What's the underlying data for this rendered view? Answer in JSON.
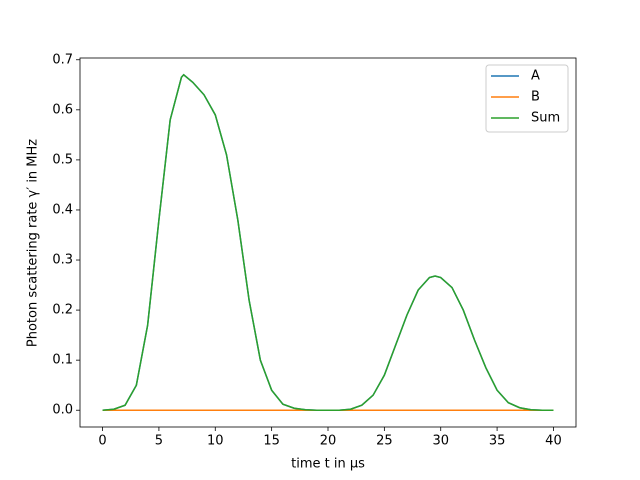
{
  "chart_data": {
    "type": "line",
    "xlabel": "time t in μs",
    "ylabel": "Photon scattering rate γ′ in MHz",
    "x": [
      0,
      1,
      2,
      3,
      4,
      5,
      6,
      7,
      7.2,
      8,
      9,
      10,
      11,
      12,
      13,
      14,
      15,
      16,
      17,
      18,
      19,
      20,
      21,
      22,
      23,
      24,
      25,
      26,
      27,
      28,
      29,
      29.5,
      30,
      31,
      32,
      33,
      34,
      35,
      36,
      37,
      38,
      39,
      40
    ],
    "series": [
      {
        "name": "A",
        "color": "#1f77b4",
        "values": [
          0,
          0.002,
          0.01,
          0.05,
          0.17,
          0.38,
          0.58,
          0.665,
          0.67,
          0.655,
          0.63,
          0.59,
          0.51,
          0.38,
          0.22,
          0.1,
          0.04,
          0.012,
          0.004,
          0.001,
          0,
          0,
          0,
          0.002,
          0.01,
          0.03,
          0.07,
          0.13,
          0.19,
          0.24,
          0.265,
          0.268,
          0.265,
          0.245,
          0.2,
          0.14,
          0.085,
          0.04,
          0.015,
          0.005,
          0.001,
          0,
          0
        ]
      },
      {
        "name": "B",
        "color": "#ff7f0e",
        "values": [
          0,
          0,
          0,
          0,
          0,
          0,
          0,
          0,
          0,
          0,
          0,
          0,
          0,
          0,
          0,
          0,
          0,
          0,
          0,
          0,
          0,
          0,
          0,
          0,
          0,
          0,
          0,
          0,
          0,
          0,
          0,
          0,
          0,
          0,
          0,
          0,
          0,
          0,
          0,
          0,
          0,
          0,
          0
        ]
      },
      {
        "name": "Sum",
        "color": "#2ca02c",
        "values": [
          0,
          0.002,
          0.01,
          0.05,
          0.17,
          0.38,
          0.58,
          0.665,
          0.67,
          0.655,
          0.63,
          0.59,
          0.51,
          0.38,
          0.22,
          0.1,
          0.04,
          0.012,
          0.004,
          0.001,
          0,
          0,
          0,
          0.002,
          0.01,
          0.03,
          0.07,
          0.13,
          0.19,
          0.24,
          0.265,
          0.268,
          0.265,
          0.245,
          0.2,
          0.14,
          0.085,
          0.04,
          0.015,
          0.005,
          0.001,
          0,
          0
        ]
      }
    ],
    "xlim": [
      -2,
      42
    ],
    "xticks": [
      0,
      5,
      10,
      15,
      20,
      25,
      30,
      35,
      40
    ],
    "ylim": [
      -0.0335,
      0.7035
    ],
    "yticks": [
      {
        "value": 0,
        "label": "0.0"
      },
      0.1,
      0.2,
      0.3,
      0.4,
      0.5,
      0.6,
      0.7
    ],
    "legend": "upper right"
  }
}
